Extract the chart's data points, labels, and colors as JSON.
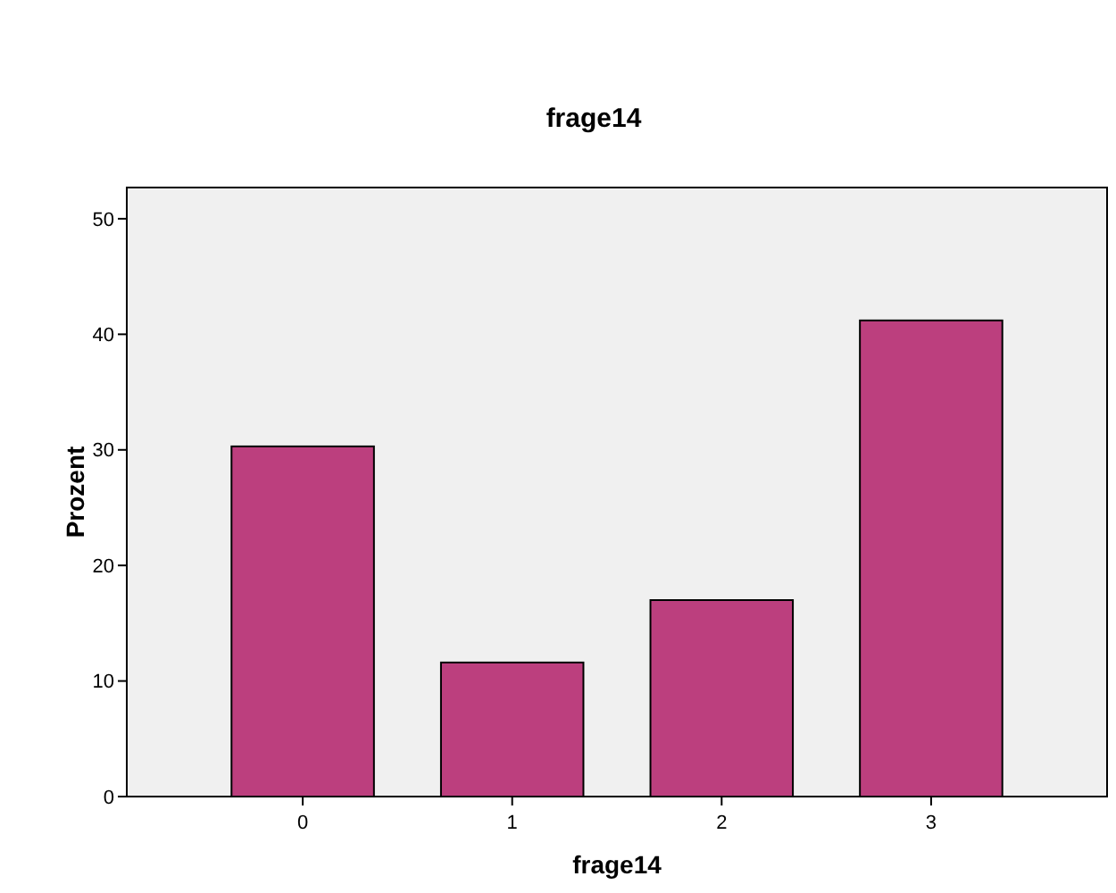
{
  "chart_data": {
    "type": "bar",
    "title": "frage14",
    "xlabel": "frage14",
    "ylabel": "Prozent",
    "categories": [
      "0",
      "1",
      "2",
      "3"
    ],
    "values": [
      30.3,
      11.6,
      17.0,
      41.2
    ],
    "color": "#bc3f7e",
    "ylim": [
      0,
      52.7
    ],
    "yticks": [
      0,
      10,
      20,
      30,
      40,
      50
    ],
    "grid": false
  }
}
